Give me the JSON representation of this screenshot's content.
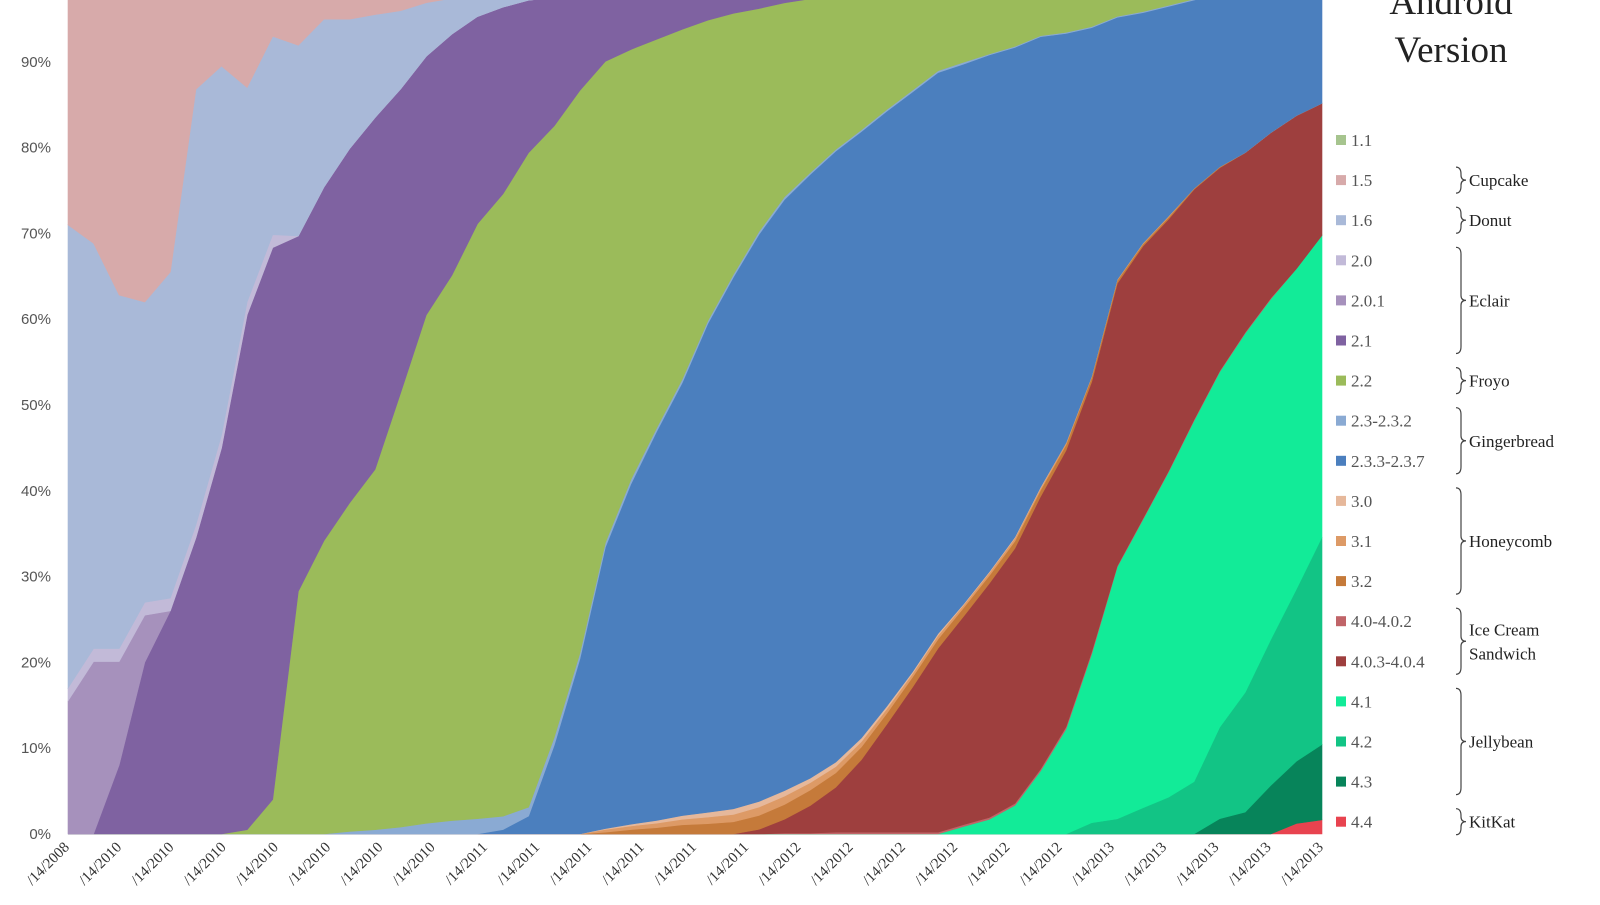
{
  "chart_data": {
    "type": "area",
    "stacked": "percent",
    "legend_title": [
      "Android",
      "Version"
    ],
    "legend_placement": "right",
    "ylim": [
      0,
      100
    ],
    "y_ticks": [
      "0%",
      "10%",
      "20%",
      "30%",
      "40%",
      "50%",
      "60%",
      "70%",
      "80%",
      "90%"
    ],
    "x_tick_labels": [
      "/14/2008",
      "/14/2010",
      "/14/2010",
      "/14/2010",
      "/14/2010",
      "/14/2010",
      "/14/2010",
      "/14/2010",
      "/14/2011",
      "/14/2011",
      "/14/2011",
      "/14/2011",
      "/14/2011",
      "/14/2011",
      "/14/2012",
      "/14/2012",
      "/14/2012",
      "/14/2012",
      "/14/2012",
      "/14/2012",
      "/14/2013",
      "/14/2013",
      "/14/2013",
      "/14/2013",
      "/14/2013"
    ],
    "x_index": [
      0,
      0.5,
      1,
      1.5,
      2,
      2.5,
      3,
      3.5,
      4,
      4.5,
      5,
      5.5,
      6,
      6.5,
      7,
      7.5,
      8,
      8.5,
      9,
      9.5,
      10,
      10.5,
      11,
      11.5,
      12,
      12.5,
      13,
      13.5,
      14,
      14.5,
      15,
      15.5,
      16,
      16.5,
      17,
      17.5,
      18,
      18.5,
      19,
      19.5,
      20,
      20.5,
      21,
      21.5,
      22,
      22.5,
      23,
      23.5,
      24,
      24.5
    ],
    "series": [
      {
        "name": "4.4",
        "color": "#e8434f",
        "values": [
          0,
          0,
          0,
          0,
          0,
          0,
          0,
          0,
          0,
          0,
          0,
          0,
          0,
          0,
          0,
          0,
          0,
          0,
          0,
          0,
          0,
          0,
          0,
          0,
          0,
          0,
          0,
          0,
          0,
          0,
          0,
          0,
          0,
          0,
          0,
          0,
          0,
          0,
          0,
          0,
          0,
          0,
          0,
          0,
          0,
          0,
          0,
          0,
          1.1,
          1.5
        ]
      },
      {
        "name": "4.3",
        "color": "#07845a",
        "values": [
          0,
          0,
          0,
          0,
          0,
          0,
          0,
          0,
          0,
          0,
          0,
          0,
          0,
          0,
          0,
          0,
          0,
          0,
          0,
          0,
          0,
          0,
          0,
          0,
          0,
          0,
          0,
          0,
          0,
          0,
          0,
          0,
          0,
          0,
          0,
          0,
          0,
          0,
          0,
          0,
          0,
          0,
          0,
          0,
          0,
          1.5,
          2.2,
          5,
          6.5,
          8
        ]
      },
      {
        "name": "4.2",
        "color": "#12c485",
        "values": [
          0,
          0,
          0,
          0,
          0,
          0,
          0,
          0,
          0,
          0,
          0,
          0,
          0,
          0,
          0,
          0,
          0,
          0,
          0,
          0,
          0,
          0,
          0,
          0,
          0,
          0,
          0,
          0,
          0,
          0,
          0,
          0,
          0,
          0,
          0,
          0,
          0,
          0,
          0,
          0,
          1,
          1.5,
          2.5,
          3.5,
          5,
          9,
          12,
          15,
          18,
          22
        ]
      },
      {
        "name": "4.1",
        "color": "#12eb98",
        "values": [
          0,
          0,
          0,
          0,
          0,
          0,
          0,
          0,
          0,
          0,
          0,
          0,
          0,
          0,
          0,
          0,
          0,
          0,
          0,
          0,
          0,
          0,
          0,
          0,
          0,
          0,
          0,
          0,
          0,
          0,
          0,
          0,
          0,
          0,
          0,
          0.8,
          1.5,
          2.8,
          6,
          9.5,
          15,
          25,
          27.5,
          31,
          34.5,
          35,
          36,
          35,
          33.5,
          32
        ]
      },
      {
        "name": "4.0-4.0.2",
        "color": "#c06468",
        "values": [
          0,
          0,
          0,
          0,
          0,
          0,
          0,
          0,
          0,
          0,
          0,
          0,
          0,
          0,
          0,
          0,
          0,
          0,
          0,
          0,
          0,
          0,
          0,
          0,
          0,
          0,
          0,
          0,
          0.1,
          0.1,
          0.2,
          0.2,
          0.2,
          0.2,
          0.2,
          0.2,
          0.2,
          0.2,
          0.2,
          0.2,
          0.2,
          0.1,
          0.1,
          0.1,
          0.1,
          0.1,
          0.1,
          0.1,
          0,
          0
        ]
      },
      {
        "name": "4.0.3-4.0.4",
        "color": "#9e3f3e",
        "values": [
          0,
          0,
          0,
          0,
          0,
          0,
          0,
          0,
          0,
          0,
          0,
          0,
          0,
          0,
          0,
          0,
          0,
          0,
          0,
          0,
          0,
          0,
          0,
          0,
          0,
          0,
          0,
          0.5,
          1.5,
          3,
          5,
          8,
          12,
          16,
          20,
          22,
          24,
          25,
          26,
          25,
          24,
          28,
          26,
          24,
          22,
          20,
          18,
          17,
          16,
          14
        ]
      },
      {
        "name": "3.2",
        "color": "#c57a3a",
        "values": [
          0,
          0,
          0,
          0,
          0,
          0,
          0,
          0,
          0,
          0,
          0,
          0,
          0,
          0,
          0,
          0,
          0,
          0,
          0,
          0,
          0,
          0.2,
          0.5,
          0.7,
          1,
          1.1,
          1.3,
          1.5,
          1.6,
          1.7,
          1.6,
          1.4,
          1.2,
          1.1,
          1,
          0.9,
          0.8,
          0.7,
          0.6,
          0.5,
          0.4,
          0.3,
          0.2,
          0.2,
          0.1,
          0.1,
          0,
          0,
          0,
          0
        ]
      },
      {
        "name": "3.1",
        "color": "#dd9a66",
        "values": [
          0,
          0,
          0,
          0,
          0,
          0,
          0,
          0,
          0,
          0,
          0,
          0,
          0,
          0,
          0,
          0,
          0,
          0,
          0,
          0,
          0,
          0.3,
          0.4,
          0.5,
          0.6,
          0.7,
          0.8,
          0.9,
          0.9,
          0.8,
          0.7,
          0.6,
          0.5,
          0.4,
          0.4,
          0.3,
          0.3,
          0.3,
          0.2,
          0.2,
          0.1,
          0.1,
          0.1,
          0.1,
          0,
          0,
          0,
          0,
          0,
          0
        ]
      },
      {
        "name": "3.0",
        "color": "#e6b89b",
        "values": [
          0,
          0,
          0,
          0,
          0,
          0,
          0,
          0,
          0,
          0,
          0,
          0,
          0,
          0,
          0,
          0,
          0,
          0,
          0,
          0,
          0,
          0.1,
          0.2,
          0.3,
          0.4,
          0.5,
          0.6,
          0.6,
          0.6,
          0.5,
          0.5,
          0.4,
          0.3,
          0.2,
          0.2,
          0.1,
          0.1,
          0.1,
          0.1,
          0,
          0,
          0,
          0,
          0,
          0,
          0,
          0,
          0,
          0,
          0
        ]
      },
      {
        "name": "2.3.3-2.3.7",
        "color": "#4b7fbe",
        "values": [
          0,
          0,
          0,
          0,
          0,
          0,
          0,
          0,
          0,
          0,
          0,
          0,
          0,
          0,
          0,
          0,
          0,
          0.5,
          2,
          9,
          18,
          31,
          38,
          43,
          47,
          52,
          57,
          61,
          64,
          66,
          68,
          67,
          66,
          64,
          61,
          57,
          53,
          48,
          43,
          37,
          31,
          26,
          22,
          20,
          18,
          17,
          16,
          15,
          14,
          13
        ]
      },
      {
        "name": "2.3-2.3.2",
        "color": "#8aaad3",
        "values": [
          0,
          0,
          0,
          0,
          0,
          0,
          0,
          0,
          0,
          0,
          0,
          0.3,
          0.5,
          0.8,
          1.2,
          1.5,
          1.7,
          1.5,
          1,
          0.8,
          0.6,
          0.5,
          0.5,
          0.4,
          0.4,
          0.3,
          0.3,
          0.3,
          0.3,
          0.2,
          0.2,
          0.2,
          0.2,
          0.2,
          0.2,
          0.2,
          0.1,
          0.1,
          0.1,
          0.1,
          0.1,
          0.1,
          0.1,
          0.1,
          0.1,
          0.1,
          0.1,
          0,
          0,
          0
        ]
      },
      {
        "name": "2.2",
        "color": "#9bbb5a",
        "values": [
          0,
          0,
          0,
          0,
          0,
          0,
          0,
          0.5,
          4,
          28,
          34,
          38,
          42,
          50,
          57,
          61,
          66,
          70,
          73,
          62,
          58,
          53,
          48,
          43,
          38,
          32,
          28,
          24,
          21,
          19,
          17,
          15,
          13,
          11,
          9,
          8,
          7,
          6,
          5,
          4.5,
          4,
          3.5,
          3,
          2.5,
          2,
          1.5,
          1.5,
          1,
          0.5,
          0.5
        ]
      },
      {
        "name": "2.1",
        "color": "#7f62a1",
        "values": [
          0,
          0,
          8,
          20,
          26,
          34,
          45,
          60,
          64,
          41,
          41,
          41,
          41,
          35,
          29,
          27,
          23,
          21,
          17,
          13,
          10,
          8,
          7,
          6,
          5,
          4,
          3.5,
          3,
          2.5,
          2.2,
          2,
          1.8,
          1.6,
          1.4,
          1.2,
          1,
          0.9,
          0.8,
          0.7,
          0.6,
          0.5,
          0.5,
          0.4,
          0.3,
          0.2,
          0.2,
          0.1,
          0.1,
          0.1,
          0
        ]
      },
      {
        "name": "2.0.1",
        "color": "#a691bc",
        "values": [
          15.5,
          20,
          12,
          5.5,
          0,
          0,
          0,
          0,
          0,
          0,
          0,
          0,
          0,
          0,
          0,
          0,
          0,
          0,
          0,
          0,
          0,
          0,
          0,
          0,
          0,
          0,
          0,
          0,
          0,
          0,
          0,
          0,
          0,
          0,
          0,
          0,
          0,
          0,
          0,
          0,
          0,
          0,
          0,
          0,
          0,
          0,
          0,
          0,
          0,
          0
        ]
      },
      {
        "name": "2.0",
        "color": "#c2bad8",
        "values": [
          1.5,
          1.5,
          1.5,
          1.5,
          1.5,
          1.5,
          1.5,
          1.5,
          1.5,
          0,
          0,
          0,
          0,
          0,
          0,
          0,
          0,
          0,
          0,
          0,
          0,
          0,
          0,
          0,
          0,
          0,
          0,
          0,
          0,
          0,
          0,
          0,
          0,
          0,
          0,
          0,
          0,
          0,
          0,
          0,
          0,
          0,
          0,
          0,
          0,
          0,
          0,
          0,
          0,
          0
        ]
      },
      {
        "name": "1.6",
        "color": "#a9b9d8",
        "values": [
          54,
          47,
          41,
          35,
          38,
          50,
          43,
          25,
          23,
          22,
          19.5,
          15,
          12,
          9,
          6,
          4,
          2.5,
          2,
          1.5,
          1.2,
          1,
          0.8,
          0.7,
          0.6,
          0.5,
          0.4,
          0.3,
          0.3,
          0.2,
          0.2,
          0.2,
          0.1,
          0.1,
          0.1,
          0.1,
          0.1,
          0.1,
          0.1,
          0,
          0,
          0,
          0,
          0,
          0,
          0,
          0,
          0,
          0,
          0,
          0
        ]
      },
      {
        "name": "1.5",
        "color": "#d7aaaa",
        "values": [
          29,
          31,
          37,
          38,
          34.5,
          13,
          10.5,
          13,
          7,
          8,
          5,
          5,
          4.5,
          4,
          3,
          2.5,
          2,
          1.5,
          1.2,
          1,
          0.8,
          0.6,
          0.5,
          0.4,
          0.3,
          0.3,
          0.2,
          0.2,
          0.2,
          0.1,
          0.1,
          0.1,
          0.1,
          0.1,
          0,
          0,
          0,
          0,
          0,
          0,
          0,
          0,
          0,
          0,
          0,
          0,
          0,
          0,
          0,
          0
        ]
      },
      {
        "name": "1.1",
        "color": "#a6c48e",
        "values": [
          0,
          0,
          0,
          0,
          0,
          0,
          0,
          0,
          0,
          0,
          0,
          0,
          0,
          0,
          0,
          0,
          0,
          0,
          0,
          0,
          0,
          0,
          0,
          0,
          0,
          0,
          0,
          0,
          0,
          0,
          0,
          0,
          0,
          0,
          0,
          0,
          0,
          0,
          0,
          0,
          0,
          0,
          0,
          0,
          0,
          0,
          0,
          0,
          0,
          0
        ]
      }
    ],
    "legend": [
      {
        "name": "1.1",
        "color": "#a6c48e"
      },
      {
        "name": "1.5",
        "color": "#d7aaaa"
      },
      {
        "name": "1.6",
        "color": "#a9b9d8"
      },
      {
        "name": "2.0",
        "color": "#c2bad8"
      },
      {
        "name": "2.0.1",
        "color": "#a691bc"
      },
      {
        "name": "2.1",
        "color": "#7f62a1"
      },
      {
        "name": "2.2",
        "color": "#9bbb5a"
      },
      {
        "name": "2.3-2.3.2",
        "color": "#8aaad3"
      },
      {
        "name": "2.3.3-2.3.7",
        "color": "#4b7fbe"
      },
      {
        "name": "3.0",
        "color": "#e6b89b"
      },
      {
        "name": "3.1",
        "color": "#dd9a66"
      },
      {
        "name": "3.2",
        "color": "#c57a3a"
      },
      {
        "name": "4.0-4.0.2",
        "color": "#c06468"
      },
      {
        "name": "4.0.3-4.0.4",
        "color": "#9e3f3e"
      },
      {
        "name": "4.1",
        "color": "#12eb98"
      },
      {
        "name": "4.2",
        "color": "#12c485"
      },
      {
        "name": "4.3",
        "color": "#07845a"
      },
      {
        "name": "4.4",
        "color": "#e8434f"
      }
    ],
    "groups": [
      {
        "label": [
          "Cupcake"
        ],
        "first": 1,
        "last": 1
      },
      {
        "label": [
          "Donut"
        ],
        "first": 2,
        "last": 2
      },
      {
        "label": [
          "Eclair"
        ],
        "first": 3,
        "last": 5
      },
      {
        "label": [
          "Froyo"
        ],
        "first": 6,
        "last": 6
      },
      {
        "label": [
          "Gingerbread"
        ],
        "first": 7,
        "last": 8
      },
      {
        "label": [
          "Honeycomb"
        ],
        "first": 9,
        "last": 11
      },
      {
        "label": [
          "Ice Cream",
          "Sandwich"
        ],
        "first": 12,
        "last": 13
      },
      {
        "label": [
          "Jellybean"
        ],
        "first": 14,
        "last": 16
      },
      {
        "label": [
          "KitKat"
        ],
        "first": 17,
        "last": 17
      }
    ]
  }
}
